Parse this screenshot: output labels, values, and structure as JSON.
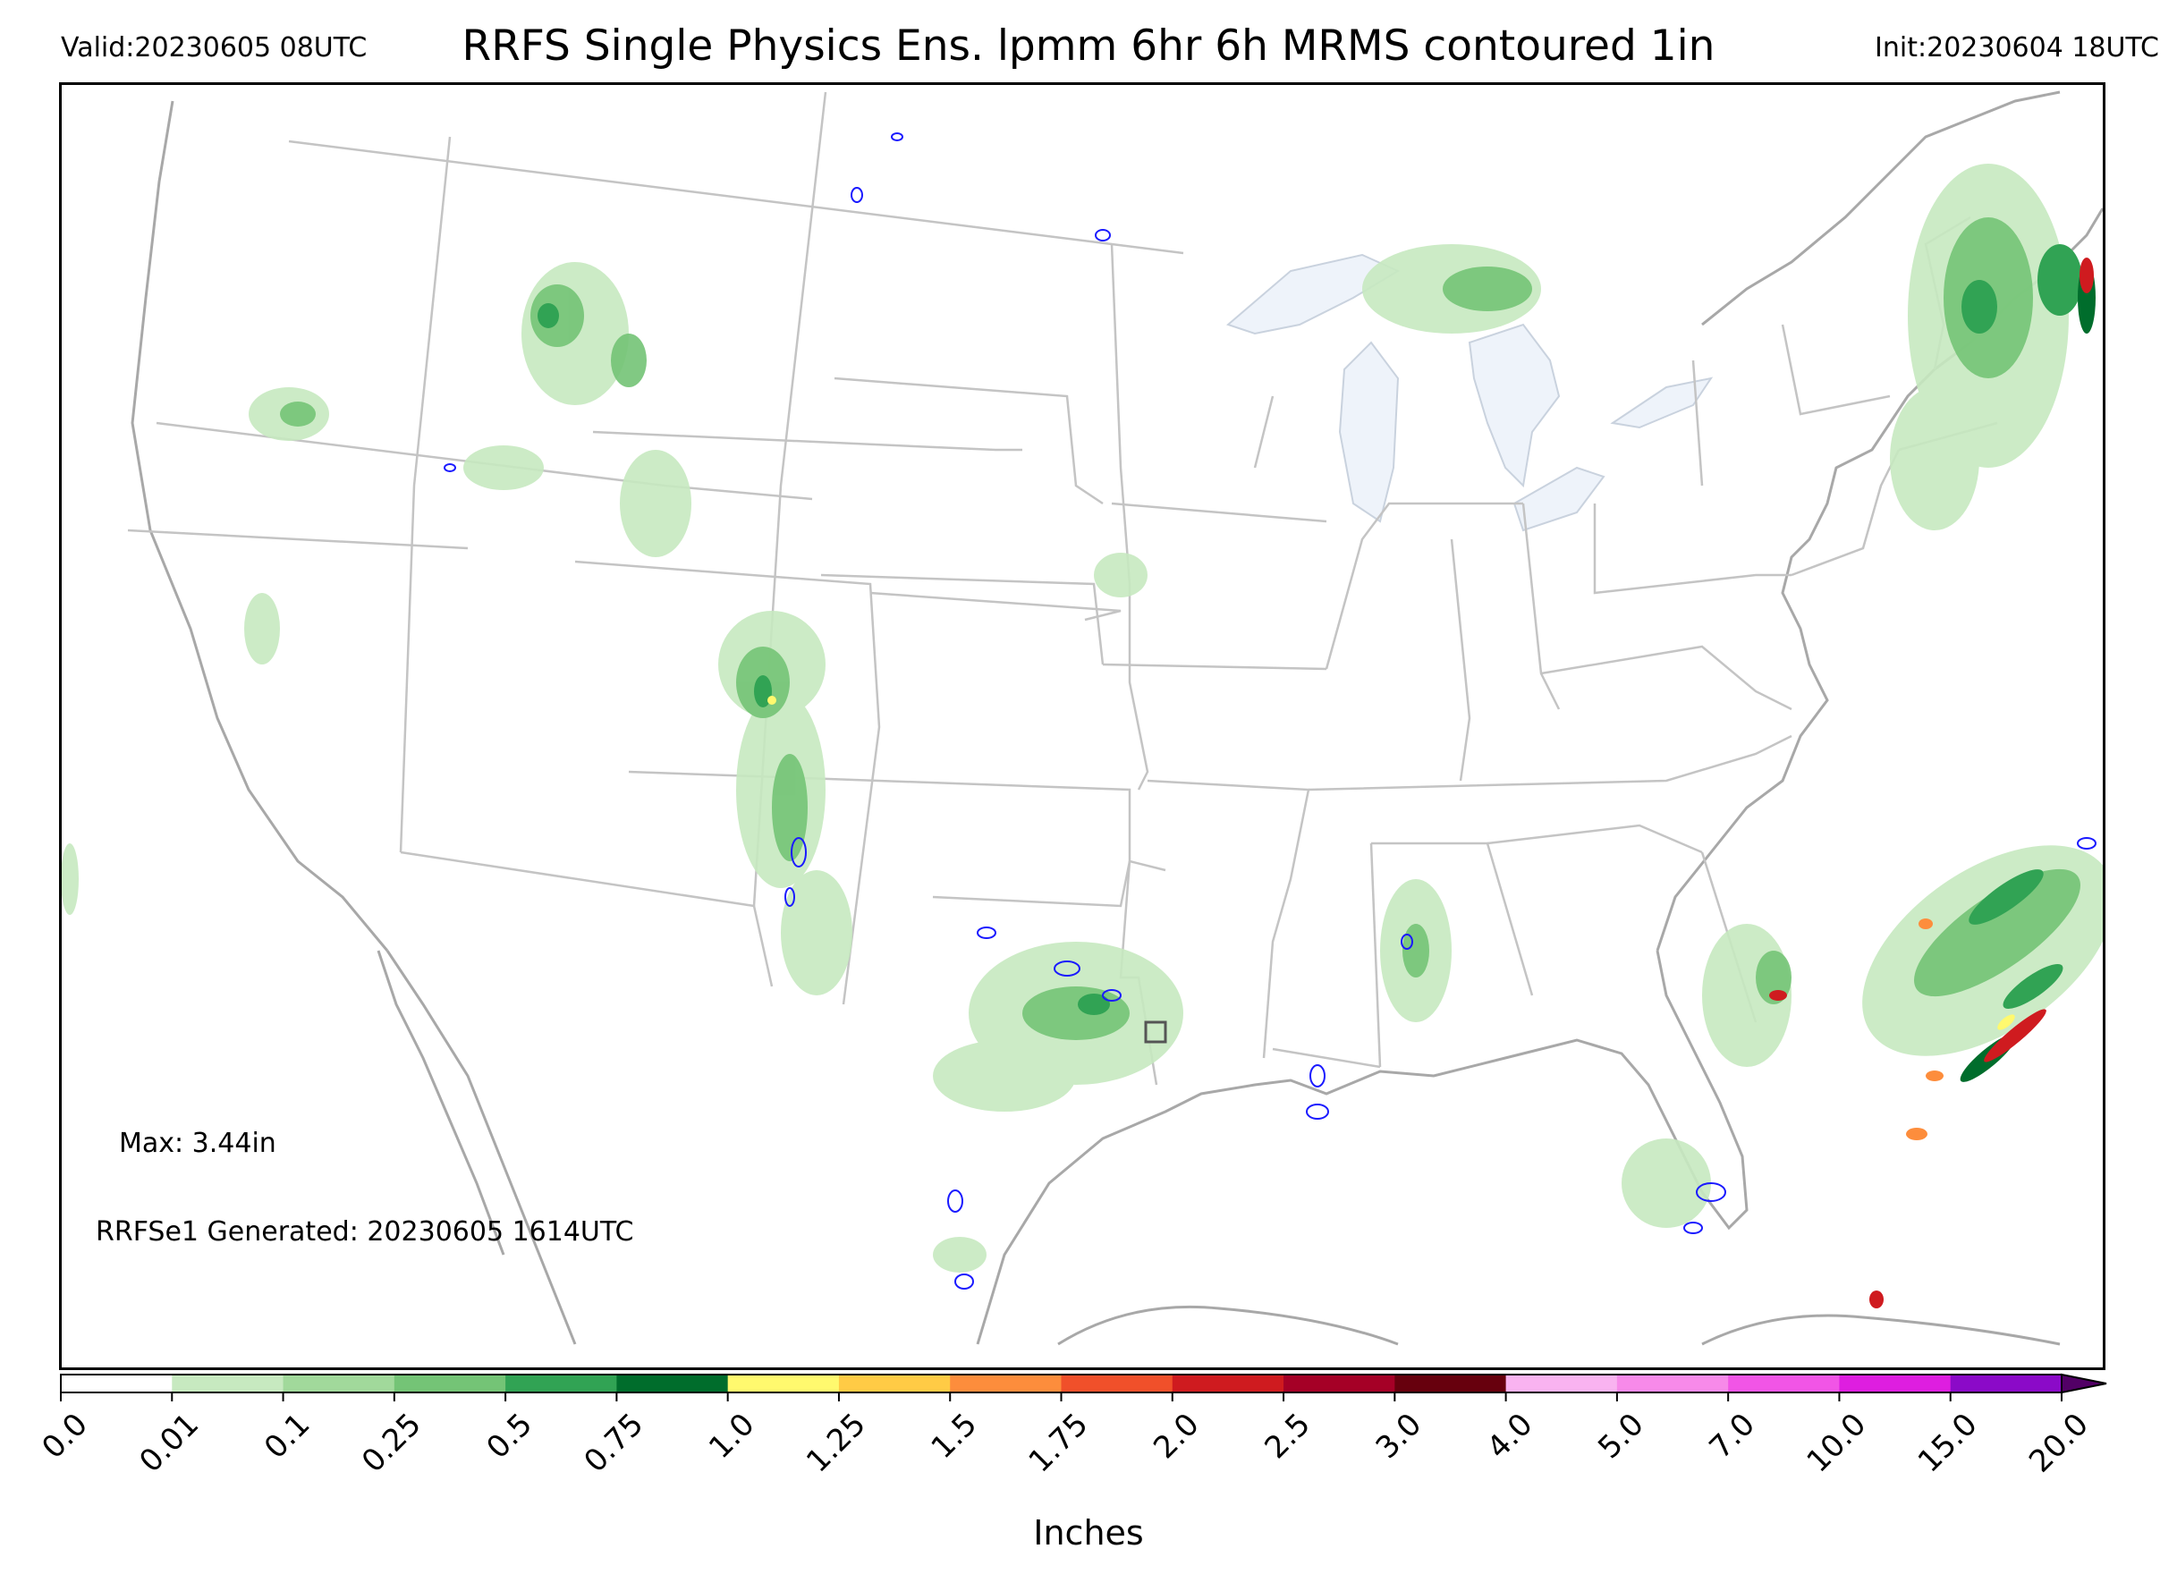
{
  "header": {
    "valid": "Valid:20230605 08UTC",
    "title": "RRFS Single Physics Ens. lpmm 6hr 6h MRMS contoured 1in",
    "init": "Init:20230604 18UTC"
  },
  "annotations": {
    "max": "Max: 3.44in",
    "generated": "RRFSe1 Generated: 20230605 1614UTC"
  },
  "colorbar": {
    "label": "Inches",
    "ticks": [
      "0.0",
      "0.01",
      "0.1",
      "0.25",
      "0.5",
      "0.75",
      "1.0",
      "1.25",
      "1.5",
      "1.75",
      "2.0",
      "2.5",
      "3.0",
      "4.0",
      "5.0",
      "7.0",
      "10.0",
      "15.0",
      "20.0"
    ],
    "colors": [
      "#ffffff",
      "#c7e9c0",
      "#a1d99b",
      "#74c476",
      "#31a354",
      "#006d2c",
      "#fff96e",
      "#ffcb45",
      "#fd8d3c",
      "#f0502a",
      "#cf1b1f",
      "#a50026",
      "#67000d",
      "#f9b3f0",
      "#f78ae9",
      "#f155e6",
      "#de1ee0",
      "#8b0ac8"
    ],
    "extend_color": "#520066"
  },
  "map": {
    "region": "Continental United States",
    "precip_colors": {
      "light": "#c7e9c0",
      "mid": "#74c476",
      "heavy": "#31a354",
      "dark": "#006d2c",
      "yellow": "#fff96e",
      "orange": "#fd8d3c",
      "red": "#cf1b1f"
    },
    "contour_color": "#1a1aff",
    "border_color": "#b0b0b0",
    "lake_color": "#eef3fa"
  }
}
